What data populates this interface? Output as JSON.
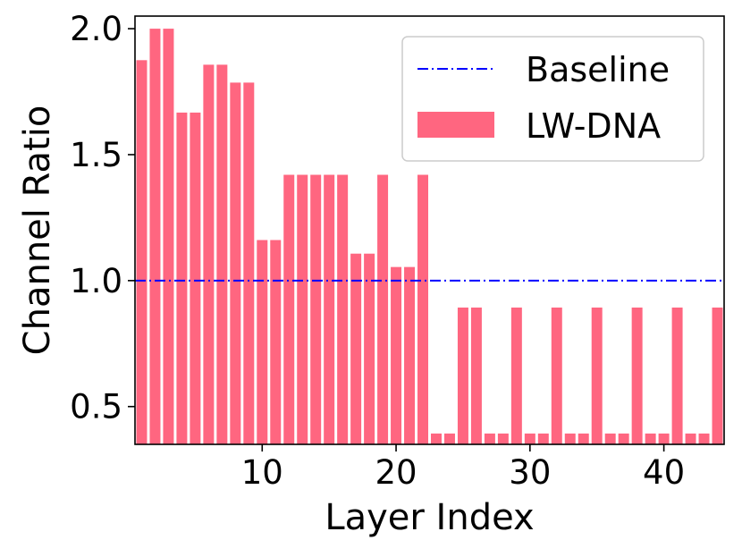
{
  "chart_data": {
    "type": "bar",
    "xlabel": "Layer Index",
    "ylabel": "Channel Ratio",
    "xlim": [
      0.5,
      44.5
    ],
    "ylim": [
      0.35,
      2.05
    ],
    "x_ticks": [
      10,
      20,
      30,
      40
    ],
    "y_ticks": [
      0.5,
      1.0,
      1.5,
      2.0
    ],
    "y_tick_labels": [
      "0.5",
      "1.0",
      "1.5",
      "2.0"
    ],
    "grid": false,
    "legend_position": "top-right",
    "bar_series": {
      "name": "LW-DNA",
      "color": "#ff6680",
      "x": [
        1,
        2,
        3,
        4,
        5,
        6,
        7,
        8,
        9,
        10,
        11,
        12,
        13,
        14,
        15,
        16,
        17,
        18,
        19,
        20,
        21,
        22,
        23,
        24,
        25,
        26,
        27,
        28,
        29,
        30,
        31,
        32,
        33,
        34,
        35,
        36,
        37,
        38,
        39,
        40,
        41,
        42,
        43,
        44
      ],
      "values": [
        1.875,
        2.0,
        2.0,
        1.667,
        1.667,
        1.857,
        1.857,
        1.786,
        1.786,
        1.161,
        1.161,
        1.42,
        1.42,
        1.42,
        1.42,
        1.42,
        1.107,
        1.107,
        1.42,
        1.054,
        1.054,
        1.42,
        0.393,
        0.393,
        0.893,
        0.893,
        0.393,
        0.393,
        0.893,
        0.393,
        0.393,
        0.893,
        0.393,
        0.393,
        0.893,
        0.393,
        0.393,
        0.893,
        0.393,
        0.393,
        0.893,
        0.393,
        0.393,
        0.893
      ]
    },
    "line_series": {
      "name": "Baseline",
      "color": "#0000ff",
      "style": "dash-dot",
      "value": 1.0
    }
  }
}
